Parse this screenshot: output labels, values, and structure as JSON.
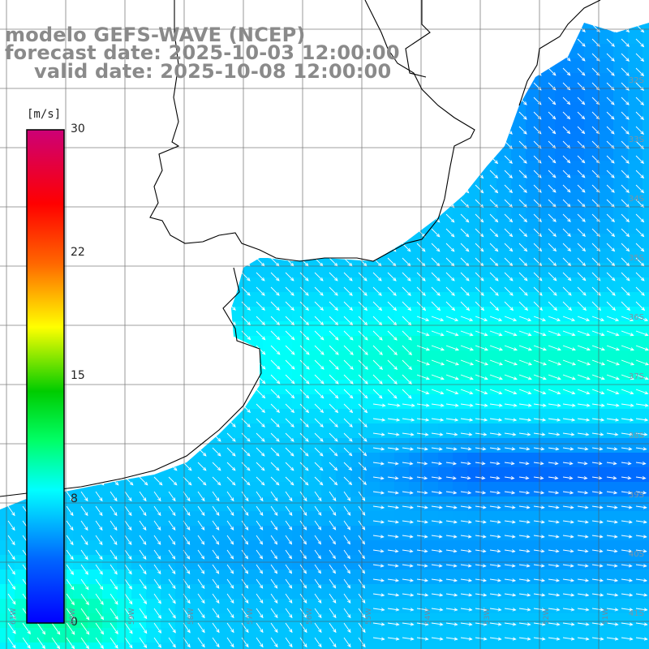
{
  "title": {
    "line1": "modelo GEFS-WAVE (NCEP)",
    "line2": "forecast date: 2025-10-03 12:00:00",
    "line3": "valid date: 2025-10-08 12:00:00"
  },
  "colorbar": {
    "unit": "[m/s]",
    "ticks": [
      "30",
      "22",
      "15",
      "8",
      "0"
    ],
    "range": [
      0,
      30
    ]
  },
  "lat_labels": [
    "32S",
    "33S",
    "34S",
    "35S",
    "36S",
    "37S",
    "38S",
    "39S",
    "40S",
    "41S"
  ],
  "lon_labels": [
    "61W",
    "60W",
    "59W",
    "58W",
    "57W",
    "56W",
    "55W",
    "54W",
    "53W",
    "52W",
    "51W"
  ],
  "wind_field": {
    "description_hint": "wind speed shading with white direction arrows toward southeast/east",
    "speed_range_ms": [
      3,
      12
    ]
  },
  "colors": {
    "land": "#ffffff",
    "grid": "#555555",
    "coast": "#000000",
    "arrow": "#ffffff",
    "title": "#8a8a8a"
  }
}
